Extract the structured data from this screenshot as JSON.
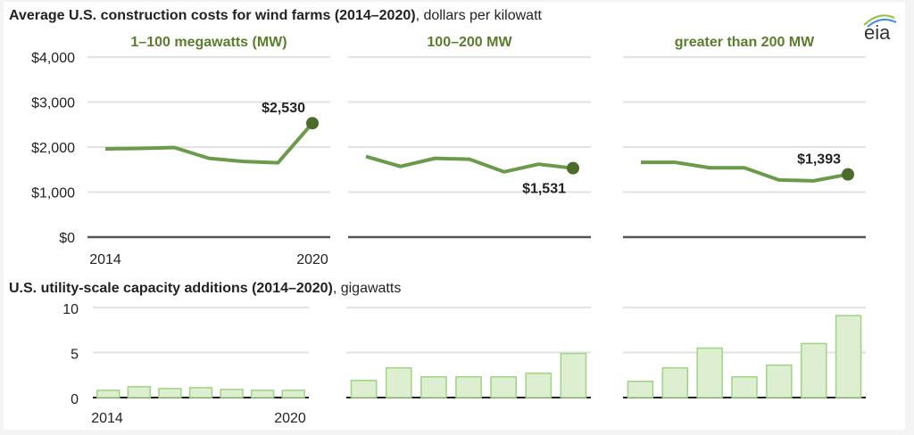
{
  "chart_data": [
    {
      "type": "line",
      "title": "Average U.S. construction costs for wind farms (2014–2020)",
      "title_unit": ", dollars per kilowatt",
      "x": [
        2014,
        2015,
        2016,
        2017,
        2018,
        2019,
        2020
      ],
      "x_tick_labels": [
        "2014",
        "2020"
      ],
      "y_tick_labels": [
        "$0",
        "$1,000",
        "$2,000",
        "$3,000",
        "$4,000"
      ],
      "ylim": [
        0,
        4000
      ],
      "grid": true,
      "panels": [
        {
          "name": "1–100 megawatts (MW)",
          "values": [
            1960,
            1970,
            1990,
            1750,
            1680,
            1650,
            2530
          ],
          "end_label": "$2,530"
        },
        {
          "name": "100–200 MW",
          "values": [
            1790,
            1570,
            1750,
            1730,
            1450,
            1620,
            1531
          ],
          "end_label": "$1,531"
        },
        {
          "name": "greater than 200 MW",
          "values": [
            1660,
            1660,
            1540,
            1540,
            1270,
            1250,
            1393
          ],
          "end_label": "$1,393"
        }
      ],
      "colors": {
        "line": "#6b9a4a",
        "marker": "#4a6b2a",
        "panel_title": "#5a7d2e"
      }
    },
    {
      "type": "bar",
      "title": "U.S. utility-scale capacity additions (2014–2020)",
      "title_unit": ", gigawatts",
      "x": [
        2014,
        2015,
        2016,
        2017,
        2018,
        2019,
        2020
      ],
      "x_tick_labels": [
        "2014",
        "2020"
      ],
      "y_tick_labels": [
        "0",
        "5",
        "10"
      ],
      "ylim": [
        0,
        10
      ],
      "grid": true,
      "panels": [
        {
          "values": [
            0.8,
            1.2,
            1.0,
            1.1,
            0.9,
            0.8,
            0.8
          ]
        },
        {
          "values": [
            1.9,
            3.3,
            2.3,
            2.3,
            2.3,
            2.7,
            4.9
          ]
        },
        {
          "values": [
            1.8,
            3.3,
            5.5,
            2.3,
            3.6,
            6.0,
            9.1
          ]
        }
      ],
      "colors": {
        "fill": "#ddefd0",
        "stroke": "#9ed483"
      }
    }
  ],
  "logo": {
    "text": "eia"
  }
}
